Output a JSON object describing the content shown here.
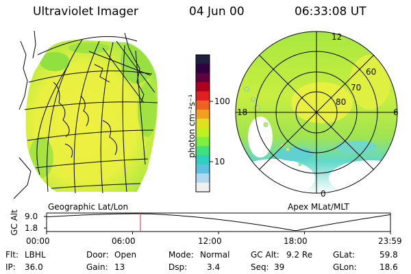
{
  "header": {
    "instrument": "Ultraviolet Imager",
    "date": "04 Jun 00",
    "time": "06:33:08 UT"
  },
  "panels": {
    "left_caption": "Geographic Lat/Lon",
    "right_caption": "Apex MLat/MLT",
    "mlt_labels": [
      "12",
      "18",
      "6",
      "0"
    ],
    "mlat_labels": [
      "60",
      "70",
      "80"
    ]
  },
  "colorbar": {
    "unit_label": "photon cm⁻²s⁻¹",
    "tick_labels": [
      "100",
      "10"
    ],
    "colors": [
      "#202040",
      "#300040",
      "#600040",
      "#b00020",
      "#e02020",
      "#f06020",
      "#f0a020",
      "#e0e020",
      "#c0f020",
      "#80f040",
      "#40e080",
      "#30d0c0",
      "#60c0e0",
      "#b0d8f0",
      "#f0f0f0"
    ]
  },
  "altitude_plot": {
    "ylabel": "GC Alt",
    "y_ticks": [
      "9.0",
      "1.8"
    ],
    "x_ticks": [
      "00:00",
      "06:00",
      "12:00",
      "18:00",
      "23:59"
    ],
    "current_time_hours": 6.55
  },
  "status": {
    "filter_label": "Flt:",
    "filter_value": "LBHL",
    "ip_label": "IP:",
    "ip_value": "36.0",
    "door_label": "Door:",
    "door_value": "Open",
    "gain_label": "Gain:",
    "gain_value": "13",
    "mode_label": "Mode:",
    "mode_value": "Normal",
    "dsp_label": "Dsp:",
    "dsp_value": "3.4",
    "gcalt_label": "GC Alt:",
    "gcalt_value": "9.2 Re",
    "seq_label": "Seq:",
    "seq_value": "39",
    "glat_label": "GLat:",
    "glat_value": "59.8",
    "glon_label": "GLon:",
    "glon_value": "18.6"
  },
  "colors": {
    "image_yellow": "#e6f040",
    "image_green": "#90e040",
    "image_cyan": "#60d8d0",
    "marker_red": "#d03030"
  }
}
